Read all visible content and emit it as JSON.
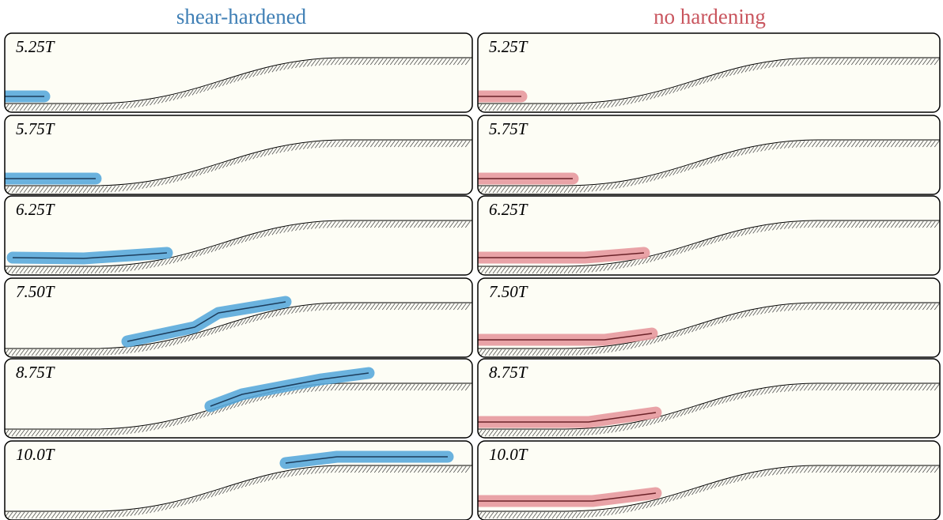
{
  "columns": [
    {
      "title": "shear-hardened",
      "panels": [
        "5.25T",
        "5.75T",
        "6.25T",
        "7.50T",
        "8.75T",
        "10.0T"
      ]
    },
    {
      "title": "no hardening",
      "panels": [
        "5.25T",
        "5.75T",
        "6.25T",
        "7.50T",
        "8.75T",
        "10.0T"
      ]
    }
  ]
}
